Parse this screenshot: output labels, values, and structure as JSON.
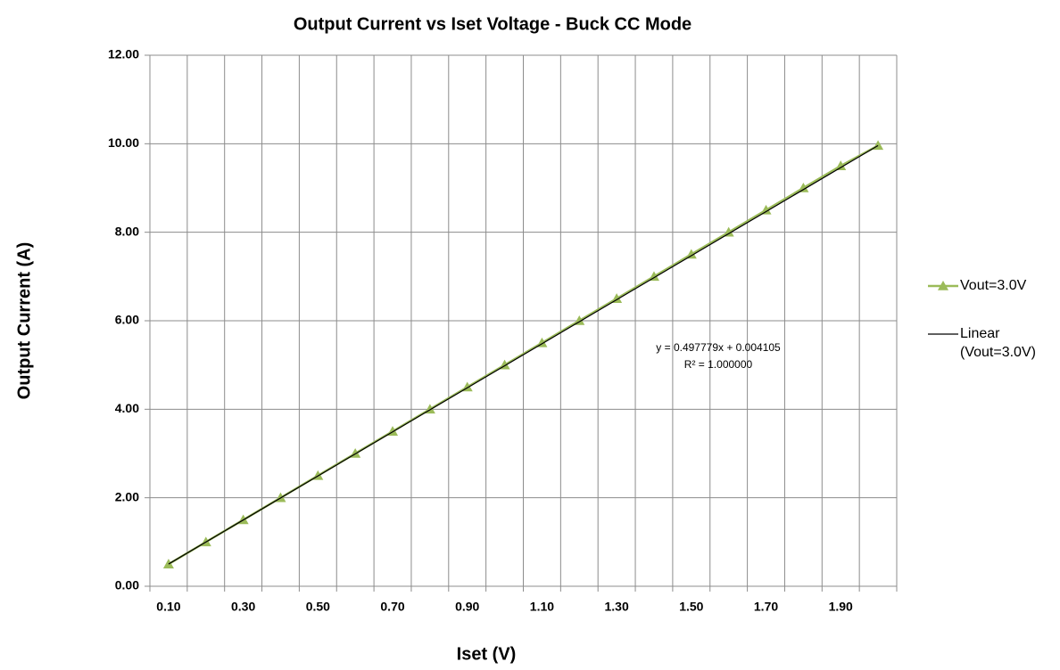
{
  "chart_data": {
    "type": "line",
    "title": "Output Current vs Iset Voltage - Buck CC Mode",
    "xlabel": "Iset (V)",
    "ylabel": "Output Current (A)",
    "categories": [
      "0.10",
      null,
      "0.30",
      null,
      "0.50",
      null,
      "0.70",
      null,
      "0.90",
      null,
      "1.10",
      null,
      "1.30",
      null,
      "1.50",
      null,
      "1.70",
      null,
      "1.90",
      null
    ],
    "series": [
      {
        "name": "Vout=3.0V",
        "color": "#9bbb59",
        "values": [
          0.5,
          1.0,
          1.5,
          2.0,
          2.5,
          3.0,
          3.5,
          4.0,
          4.5,
          5.0,
          5.5,
          6.0,
          6.5,
          7.0,
          7.5,
          8.0,
          8.5,
          9.0,
          9.5,
          9.96
        ]
      }
    ],
    "trendline": {
      "name": "Linear (Vout=3.0V)",
      "color": "#000000",
      "slope": 0.497779,
      "intercept": 0.004105,
      "equation": "y = 0.497779x + 0.004105",
      "r2": "R² = 1.000000"
    },
    "ylim": [
      0,
      12
    ],
    "yticks": [
      {
        "value": 0,
        "label": "0.00"
      },
      {
        "value": 2,
        "label": "2.00"
      },
      {
        "value": 4,
        "label": "4.00"
      },
      {
        "value": 6,
        "label": "6.00"
      },
      {
        "value": 8,
        "label": "8.00"
      },
      {
        "value": 10,
        "label": "10.00"
      },
      {
        "value": 12,
        "label": "12.00"
      }
    ],
    "grid": true,
    "legend": "right"
  }
}
